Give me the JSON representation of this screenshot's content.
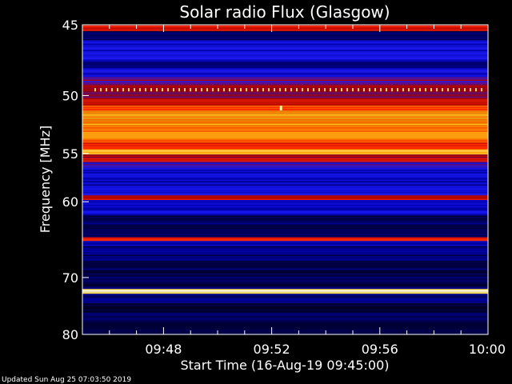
{
  "chart_data": {
    "type": "heatmap",
    "title": "Solar radio Flux (Glasgow)",
    "xlabel": "Start Time (16-Aug-19 09:45:00)",
    "ylabel": "Frequency [MHz]",
    "x_ticks": [
      "09:48",
      "09:52",
      "09:56",
      "10:00"
    ],
    "x_tick_minutes": [
      3,
      7,
      11,
      15
    ],
    "x_range_minutes": [
      0,
      15
    ],
    "y_ticks": [
      45,
      50,
      55,
      60,
      70,
      80
    ],
    "y_range_mhz": [
      45,
      80
    ],
    "y_scale": "reciprocal",
    "colormap": [
      "#000000",
      "#000044",
      "#0000aa",
      "#1a1aff",
      "#aa0000",
      "#ff2200",
      "#ff7a00",
      "#ffd020",
      "#ffffff"
    ],
    "bands": [
      {
        "f0": 45.0,
        "f1": 45.4,
        "level": 0.58
      },
      {
        "f0": 45.4,
        "f1": 46.0,
        "level": 0.15
      },
      {
        "f0": 46.0,
        "f1": 47.4,
        "level": 0.32
      },
      {
        "f0": 47.4,
        "f1": 48.0,
        "level": 0.22
      },
      {
        "f0": 48.0,
        "f1": 48.6,
        "level": 0.33
      },
      {
        "f0": 48.6,
        "f1": 49.3,
        "level": 0.45
      },
      {
        "f0": 49.3,
        "f1": 49.7,
        "level": 0.52
      },
      {
        "f0": 49.7,
        "f1": 50.3,
        "level": 0.47
      },
      {
        "f0": 50.3,
        "f1": 50.8,
        "level": 0.55
      },
      {
        "f0": 50.8,
        "f1": 51.2,
        "level": 0.66
      },
      {
        "f0": 51.2,
        "f1": 52.5,
        "level": 0.79
      },
      {
        "f0": 52.5,
        "f1": 54.0,
        "level": 0.75
      },
      {
        "f0": 54.0,
        "f1": 54.6,
        "level": 0.62
      },
      {
        "f0": 54.6,
        "f1": 55.1,
        "level": 0.85
      },
      {
        "f0": 55.1,
        "f1": 55.8,
        "level": 0.54
      },
      {
        "f0": 55.8,
        "f1": 56.6,
        "level": 0.38
      },
      {
        "f0": 56.6,
        "f1": 57.6,
        "level": 0.31
      },
      {
        "f0": 57.6,
        "f1": 58.8,
        "level": 0.27
      },
      {
        "f0": 58.8,
        "f1": 59.3,
        "level": 0.34
      },
      {
        "f0": 59.3,
        "f1": 59.8,
        "level": 0.55
      },
      {
        "f0": 59.8,
        "f1": 61.5,
        "level": 0.28
      },
      {
        "f0": 61.5,
        "f1": 64.3,
        "level": 0.15
      },
      {
        "f0": 64.3,
        "f1": 64.8,
        "level": 0.63
      },
      {
        "f0": 64.8,
        "f1": 65.5,
        "level": 0.28
      },
      {
        "f0": 65.5,
        "f1": 68.5,
        "level": 0.18
      },
      {
        "f0": 68.5,
        "f1": 71.8,
        "level": 0.14
      },
      {
        "f0": 71.8,
        "f1": 72.6,
        "level": 0.95
      },
      {
        "f0": 72.6,
        "f1": 74.0,
        "level": 0.22
      },
      {
        "f0": 74.0,
        "f1": 77.0,
        "level": 0.14
      },
      {
        "f0": 77.0,
        "f1": 80.0,
        "level": 0.11
      }
    ]
  },
  "footer": {
    "updated": "Updated Sun Aug 25 07:03:50 2019"
  }
}
